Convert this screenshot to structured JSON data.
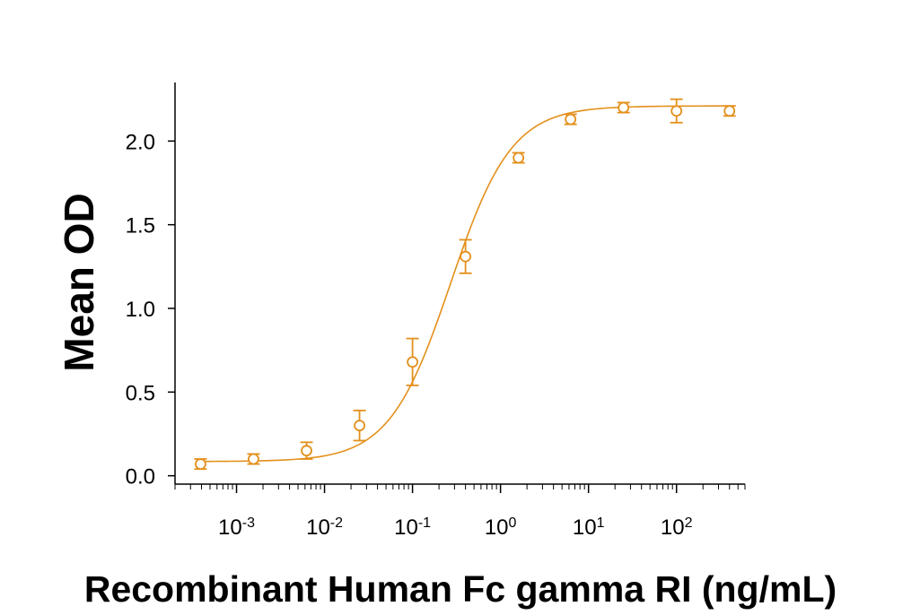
{
  "chart_data": {
    "type": "scatter",
    "title": "",
    "xlabel": "Recombinant Human Fc gamma RI (ng/mL)",
    "ylabel": "Mean OD",
    "x_scale": "log",
    "xlim": [
      0.0002,
      600
    ],
    "ylim": [
      -0.05,
      2.35
    ],
    "y_ticks": [
      {
        "value": 0.0,
        "label": "0.0"
      },
      {
        "value": 0.5,
        "label": "0.5"
      },
      {
        "value": 1.0,
        "label": "1.0"
      },
      {
        "value": 1.5,
        "label": "1.5"
      },
      {
        "value": 2.0,
        "label": "2.0"
      }
    ],
    "x_ticks": [
      {
        "value": 0.001,
        "base": "10",
        "exp": "-3"
      },
      {
        "value": 0.01,
        "base": "10",
        "exp": "-2"
      },
      {
        "value": 0.1,
        "base": "10",
        "exp": "-1"
      },
      {
        "value": 1,
        "base": "10",
        "exp": "0"
      },
      {
        "value": 10,
        "base": "10",
        "exp": "1"
      },
      {
        "value": 100,
        "base": "10",
        "exp": "2"
      }
    ],
    "grid": false,
    "legend": "none",
    "color": "#E3901C",
    "series": [
      {
        "points": [
          {
            "x": 0.00039,
            "y": 0.07,
            "err": 0.03
          },
          {
            "x": 0.00156,
            "y": 0.1,
            "err": 0.03
          },
          {
            "x": 0.00625,
            "y": 0.15,
            "err": 0.05
          },
          {
            "x": 0.025,
            "y": 0.3,
            "err": 0.09
          },
          {
            "x": 0.1,
            "y": 0.68,
            "err": 0.14
          },
          {
            "x": 0.4,
            "y": 1.31,
            "err": 0.1
          },
          {
            "x": 1.6,
            "y": 1.9,
            "err": 0.03
          },
          {
            "x": 6.25,
            "y": 2.13,
            "err": 0.03
          },
          {
            "x": 25,
            "y": 2.2,
            "err": 0.03
          },
          {
            "x": 100,
            "y": 2.18,
            "err": 0.07
          },
          {
            "x": 400,
            "y": 2.18,
            "err": 0.03
          }
        ],
        "fit": {
          "bottom": 0.085,
          "top": 2.21,
          "ec50": 0.27,
          "hill": 1.25
        }
      }
    ]
  }
}
